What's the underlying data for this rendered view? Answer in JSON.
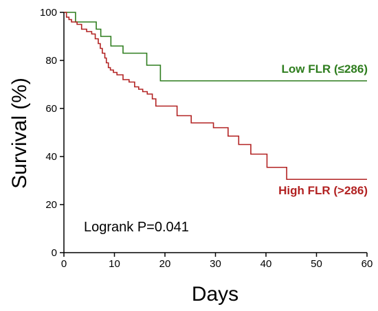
{
  "chart_data": {
    "type": "line",
    "step": true,
    "title": "",
    "xlabel": "Days",
    "ylabel": "Survival (%)",
    "xlim": [
      0,
      60
    ],
    "ylim": [
      0,
      100
    ],
    "xticks": [
      0,
      10,
      20,
      30,
      40,
      50,
      60
    ],
    "yticks": [
      0,
      20,
      40,
      60,
      80,
      100
    ],
    "grid": false,
    "annotation": "Logrank P=0.041",
    "series": [
      {
        "name": "Low FLR (≤286)",
        "color": "#2e7d1e",
        "x": [
          0,
          2.3,
          6.4,
          7.3,
          9.3,
          11.7,
          16.4,
          19.1,
          60
        ],
        "y": [
          100,
          96,
          93,
          90,
          86,
          83,
          78,
          71.5,
          71.5
        ]
      },
      {
        "name": "High FLR (>286)",
        "color": "#b22222",
        "x": [
          0,
          0.5,
          1,
          1.5,
          2.6,
          3.5,
          4.5,
          5.5,
          6.2,
          6.8,
          7.2,
          7.6,
          8.1,
          8.4,
          8.8,
          9.2,
          9.8,
          10.5,
          11.7,
          12.9,
          14,
          14.8,
          15.6,
          16.5,
          17.5,
          18.2,
          22.4,
          25.2,
          29.6,
          32.5,
          34.6,
          37,
          40.2,
          44.1,
          60
        ],
        "y": [
          100,
          98,
          97,
          96,
          95,
          93,
          92,
          91,
          89,
          87,
          85,
          83,
          81,
          79,
          77,
          76,
          75,
          74,
          72,
          71,
          69,
          68,
          67,
          66,
          64,
          61,
          57,
          54,
          52,
          48.5,
          45,
          41,
          35.5,
          30.5,
          30.5
        ]
      }
    ]
  }
}
